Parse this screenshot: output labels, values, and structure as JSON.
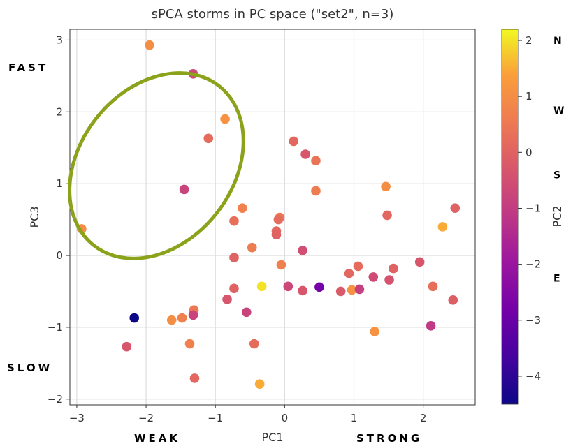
{
  "chart_data": {
    "type": "scatter",
    "title": "sPCA storms in PC space (\"set2\", n=3)",
    "xlabel": "PC1",
    "ylabel": "PC3",
    "xlim": [
      -3.1,
      2.75
    ],
    "ylim": [
      -2.08,
      3.15
    ],
    "x_ticks": [
      "−3",
      "−2",
      "−1",
      "0",
      "1",
      "2"
    ],
    "x_tick_values": [
      -3,
      -2,
      -1,
      0,
      1,
      2
    ],
    "y_ticks": [
      "−2",
      "−1",
      "0",
      "1",
      "2",
      "3"
    ],
    "y_tick_values": [
      -2,
      -1,
      0,
      1,
      2,
      3
    ],
    "grid": true,
    "colorbar": {
      "label": "PC2",
      "colormap": "plasma",
      "range": [
        -4.5,
        2.2
      ],
      "tick_values": [
        2,
        1,
        0,
        -1,
        -2,
        -3,
        -4
      ],
      "tick_labels": [
        "2",
        "1",
        "0",
        "−1",
        "−2",
        "−3",
        "−4"
      ]
    },
    "annotations": {
      "fast": "FAST",
      "slow": "SLOW",
      "weak": "WEAK",
      "strong": "STRONG"
    },
    "compass_labels": [
      {
        "text": "N",
        "at_pc2": 2.0
      },
      {
        "text": "W",
        "at_pc2": 0.75
      },
      {
        "text": "S",
        "at_pc2": -0.4
      },
      {
        "text": "E",
        "at_pc2": -2.25
      }
    ],
    "highlight_ellipse": {
      "center": [
        -1.85,
        1.25
      ],
      "semi_axes_data": [
        1.35,
        1.7
      ],
      "rotation_deg": 38,
      "color": "#8aa31b"
    },
    "points": [
      {
        "x": -1.95,
        "y": 2.93,
        "c": 1.0
      },
      {
        "x": -1.32,
        "y": 2.53,
        "c": -0.6
      },
      {
        "x": -0.86,
        "y": 1.9,
        "c": 1.1
      },
      {
        "x": -1.1,
        "y": 1.63,
        "c": 0.2
      },
      {
        "x": -1.45,
        "y": 0.92,
        "c": -0.8
      },
      {
        "x": -2.93,
        "y": 0.37,
        "c": 1.0
      },
      {
        "x": 0.13,
        "y": 1.59,
        "c": 0.1
      },
      {
        "x": 0.3,
        "y": 1.41,
        "c": -0.3
      },
      {
        "x": 0.45,
        "y": 1.32,
        "c": 0.4
      },
      {
        "x": 0.45,
        "y": 0.9,
        "c": 0.6
      },
      {
        "x": 1.46,
        "y": 0.96,
        "c": 1.0
      },
      {
        "x": 1.48,
        "y": 0.56,
        "c": 0.1
      },
      {
        "x": 2.46,
        "y": 0.66,
        "c": 0.0
      },
      {
        "x": 2.28,
        "y": 0.4,
        "c": 1.5
      },
      {
        "x": -0.61,
        "y": 0.66,
        "c": 0.7
      },
      {
        "x": -0.73,
        "y": 0.48,
        "c": 0.3
      },
      {
        "x": -0.07,
        "y": 0.53,
        "c": 0.5
      },
      {
        "x": -0.09,
        "y": 0.5,
        "c": 0.2
      },
      {
        "x": -0.12,
        "y": 0.34,
        "c": 0.1
      },
      {
        "x": -0.12,
        "y": 0.29,
        "c": 0.0
      },
      {
        "x": -0.47,
        "y": 0.11,
        "c": 0.6
      },
      {
        "x": 0.26,
        "y": 0.07,
        "c": -0.5
      },
      {
        "x": -0.73,
        "y": -0.03,
        "c": 0.0
      },
      {
        "x": -0.05,
        "y": -0.13,
        "c": 0.7
      },
      {
        "x": 1.06,
        "y": -0.15,
        "c": 0.2
      },
      {
        "x": 1.57,
        "y": -0.18,
        "c": 0.0
      },
      {
        "x": 1.95,
        "y": -0.09,
        "c": -0.3
      },
      {
        "x": 0.93,
        "y": -0.25,
        "c": 0.1
      },
      {
        "x": 1.28,
        "y": -0.3,
        "c": -0.6
      },
      {
        "x": 1.51,
        "y": -0.34,
        "c": -0.4
      },
      {
        "x": -0.33,
        "y": -0.43,
        "c": 2.0
      },
      {
        "x": 0.05,
        "y": -0.43,
        "c": -0.7
      },
      {
        "x": 0.5,
        "y": -0.44,
        "c": -2.8
      },
      {
        "x": -0.73,
        "y": -0.46,
        "c": 0.0
      },
      {
        "x": 0.26,
        "y": -0.49,
        "c": -0.3
      },
      {
        "x": 0.81,
        "y": -0.5,
        "c": -0.2
      },
      {
        "x": 0.97,
        "y": -0.48,
        "c": 1.1
      },
      {
        "x": 1.08,
        "y": -0.47,
        "c": -0.9
      },
      {
        "x": 2.14,
        "y": -0.43,
        "c": 0.3
      },
      {
        "x": 2.43,
        "y": -0.62,
        "c": -0.1
      },
      {
        "x": -0.83,
        "y": -0.61,
        "c": -0.3
      },
      {
        "x": -1.31,
        "y": -0.76,
        "c": 0.5
      },
      {
        "x": -1.32,
        "y": -0.83,
        "c": -0.8
      },
      {
        "x": -0.55,
        "y": -0.79,
        "c": -0.8
      },
      {
        "x": -2.17,
        "y": -0.87,
        "c": -4.5
      },
      {
        "x": -1.63,
        "y": -0.9,
        "c": 1.0
      },
      {
        "x": -1.48,
        "y": -0.87,
        "c": 0.7
      },
      {
        "x": 2.11,
        "y": -0.98,
        "c": -1.1
      },
      {
        "x": 1.3,
        "y": -1.06,
        "c": 1.1
      },
      {
        "x": -2.28,
        "y": -1.27,
        "c": -0.3
      },
      {
        "x": -1.37,
        "y": -1.23,
        "c": 0.7
      },
      {
        "x": -0.44,
        "y": -1.23,
        "c": 0.2
      },
      {
        "x": -1.3,
        "y": -1.71,
        "c": 0.1
      },
      {
        "x": -0.36,
        "y": -1.79,
        "c": 1.5
      }
    ]
  }
}
